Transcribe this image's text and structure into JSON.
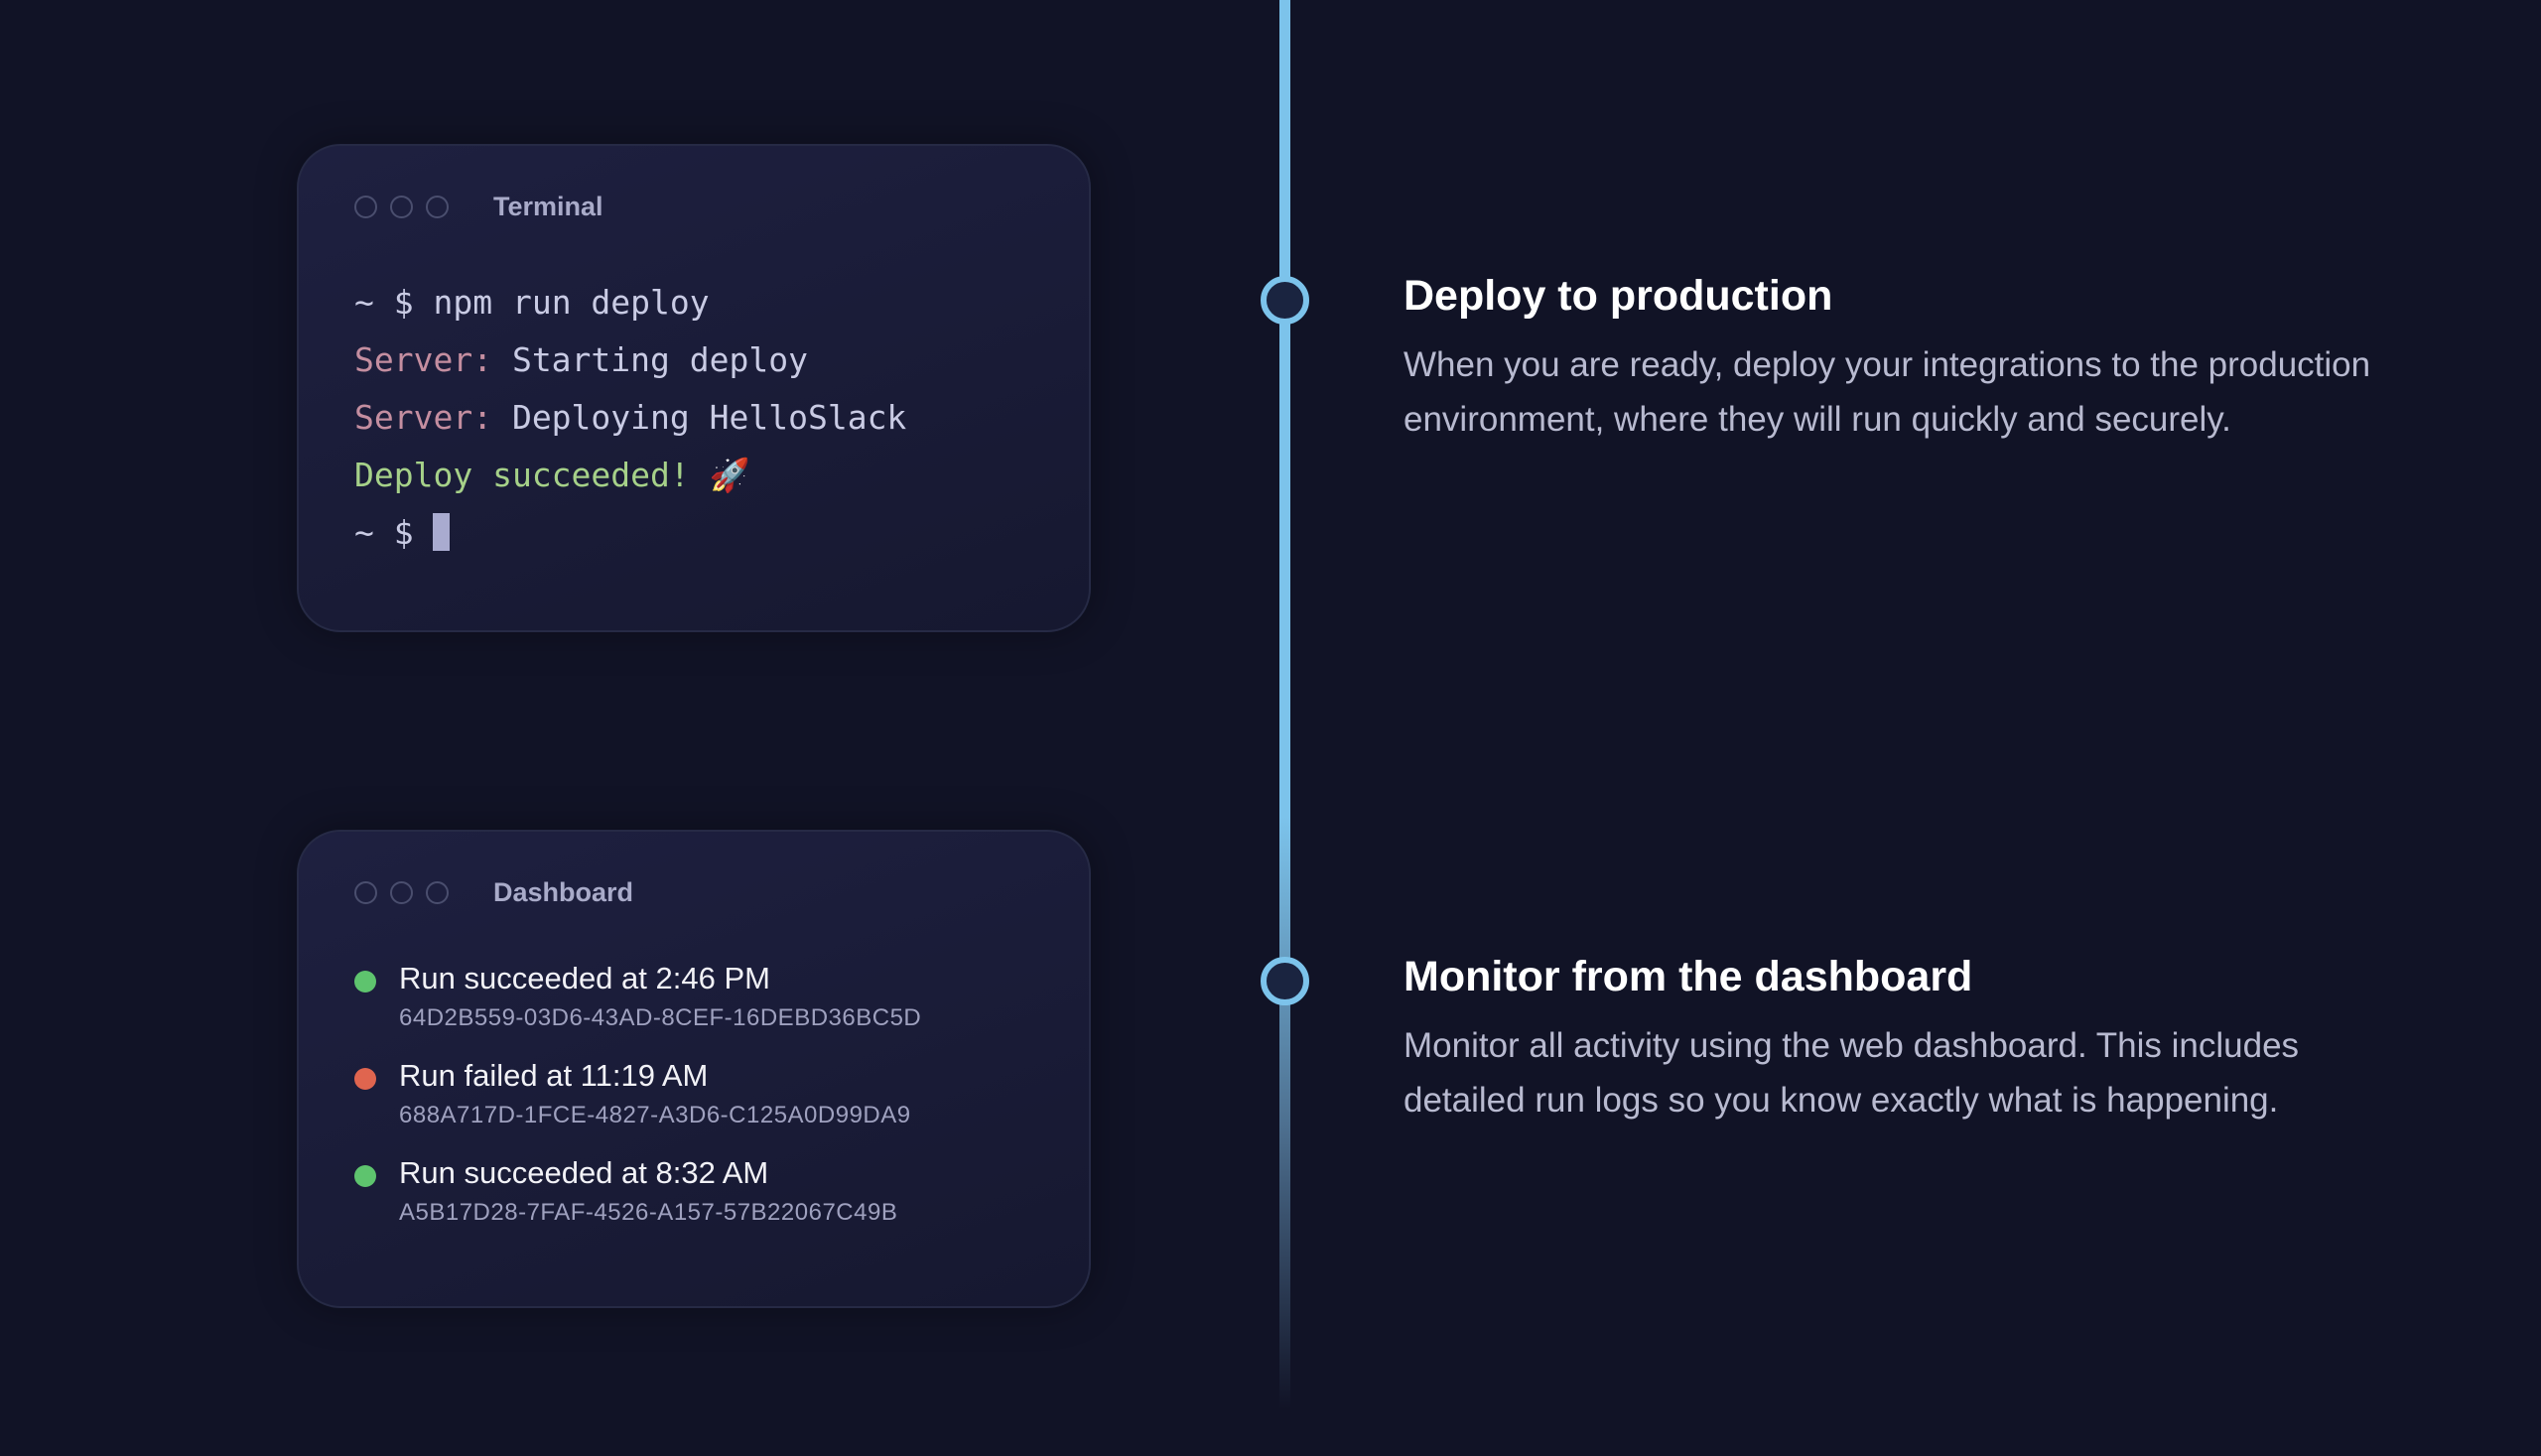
{
  "terminal": {
    "title": "Terminal",
    "lines": [
      {
        "prompt": "~ $ ",
        "text": "npm run deploy"
      },
      {
        "label": "Server:",
        "text": " Starting deploy"
      },
      {
        "label": "Server:",
        "text": " Deploying HelloSlack"
      },
      {
        "text": "Deploy succeeded! 🚀"
      },
      {
        "prompt": "~ $ "
      }
    ]
  },
  "dashboard": {
    "title": "Dashboard",
    "runs": [
      {
        "title": "Run succeeded at 2:46 PM",
        "id": "64D2B559-03D6-43AD-8CEF-16DEBD36BC5D",
        "status": "success",
        "color": "#5ec46e"
      },
      {
        "title": "Run failed at 11:19 AM",
        "id": "688A717D-1FCE-4827-A3D6-C125A0D99DA9",
        "status": "failed",
        "color": "#e0654f"
      },
      {
        "title": "Run succeeded at 8:32 AM",
        "id": "A5B17D28-7FAF-4526-A157-57B22067C49B",
        "status": "success",
        "color": "#5ec46e"
      }
    ]
  },
  "steps": [
    {
      "heading": "Deploy to production",
      "body": "When you are ready, deploy your integrations to the production environment, where they will run quickly and securely."
    },
    {
      "heading": "Monitor from the dashboard",
      "body": "Monitor all activity using the web dashboard. This includes detailed run logs so you know exactly what is happening."
    }
  ],
  "colors": {
    "timeline": "#7cc3eb",
    "background": "#111326"
  }
}
